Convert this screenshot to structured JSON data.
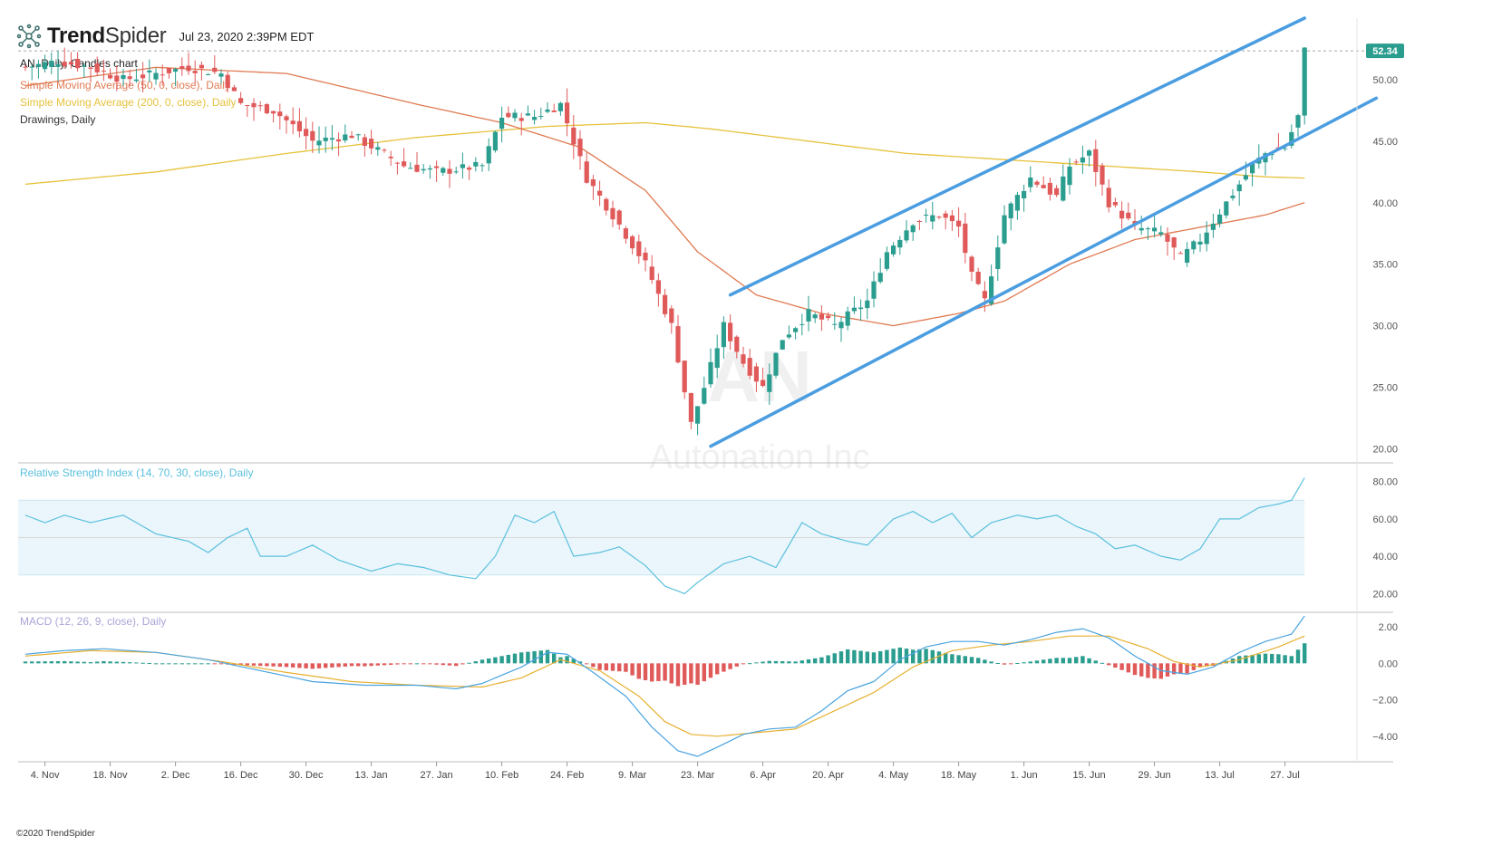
{
  "header": {
    "brand_bold": "Trend",
    "brand_thin": "Spider",
    "timestamp": "Jul 23, 2020 2:39PM EDT",
    "logo_icon": "spider-network-icon"
  },
  "price_panel": {
    "legend": [
      {
        "text": "AN, Daily, Candles chart",
        "color": "#222222"
      },
      {
        "text": "Simple Moving Average (50, 0, close), Daily",
        "color": "#e07a52"
      },
      {
        "text": "Simple Moving Average (200, 0, close), Daily",
        "color": "#e6c23c"
      },
      {
        "text": "Drawings, Daily",
        "color": "#333333"
      }
    ],
    "y_ticks": [
      "50.00",
      "45.00",
      "40.00",
      "35.00",
      "30.00",
      "25.00",
      "20.00"
    ],
    "y_values": [
      50,
      45,
      40,
      35,
      30,
      25,
      20
    ],
    "last_price": "52.34",
    "watermark_ticker": "AN",
    "watermark_name": "Autonation Inc"
  },
  "rsi_panel": {
    "legend": "Relative Strength Index (14, 70, 30, close), Daily",
    "y_ticks": [
      "80.00",
      "60.00",
      "40.00",
      "20.00"
    ],
    "y_values": [
      80,
      60,
      40,
      20
    ]
  },
  "macd_panel": {
    "legend": "MACD (12, 26, 9, close), Daily",
    "y_ticks": [
      "2.00",
      "0.00",
      "−2.00",
      "−4.00"
    ],
    "y_values": [
      2,
      0,
      -2,
      -4
    ]
  },
  "x_axis": {
    "labels": [
      "4. Nov",
      "18. Nov",
      "2. Dec",
      "16. Dec",
      "30. Dec",
      "13. Jan",
      "27. Jan",
      "10. Feb",
      "24. Feb",
      "9. Mar",
      "23. Mar",
      "6. Apr",
      "20. Apr",
      "4. May",
      "18. May",
      "1. Jun",
      "15. Jun",
      "29. Jun",
      "13. Jul",
      "27. Jul"
    ],
    "days": [
      3,
      13,
      23,
      33,
      43,
      53,
      63,
      73,
      83,
      93,
      103,
      113,
      123,
      133,
      143,
      153,
      163,
      173,
      183,
      193
    ]
  },
  "footer": {
    "copyright": "©2020 TrendSpider"
  },
  "colors": {
    "up": "#2a9d8f",
    "down": "#e05a5a",
    "channel": "#4a9de0",
    "sma50": "#e07a52",
    "sma200": "#e6c23c",
    "rsi": "#5bc0de",
    "macd": "#4aa3df",
    "signal": "#e6b030",
    "price_tag": "#2a9d8f"
  },
  "chart_data": [
    {
      "type": "candlestick",
      "ticker": "AN",
      "x_unit": "trading day index (0 = 28 Oct 2019)",
      "ylim": [
        19,
        55
      ],
      "anchors": [
        [
          0,
          51
        ],
        [
          5,
          51.5
        ],
        [
          10,
          51
        ],
        [
          15,
          50
        ],
        [
          20,
          50.5
        ],
        [
          25,
          51
        ],
        [
          30,
          50.5
        ],
        [
          33,
          48
        ],
        [
          38,
          47.5
        ],
        [
          44,
          45
        ],
        [
          50,
          45.5
        ],
        [
          58,
          43
        ],
        [
          63,
          42.5
        ],
        [
          70,
          43
        ],
        [
          73,
          47
        ],
        [
          78,
          47
        ],
        [
          82,
          48
        ],
        [
          86,
          42
        ],
        [
          90,
          39
        ],
        [
          95,
          35
        ],
        [
          99,
          30
        ],
        [
          102,
          22
        ],
        [
          104,
          25
        ],
        [
          107,
          30
        ],
        [
          110,
          27
        ],
        [
          113,
          25
        ],
        [
          116,
          29
        ],
        [
          120,
          31
        ],
        [
          124,
          30
        ],
        [
          129,
          32
        ],
        [
          132,
          36
        ],
        [
          136,
          38.5
        ],
        [
          140,
          39
        ],
        [
          143,
          38
        ],
        [
          145,
          34
        ],
        [
          147,
          32
        ],
        [
          150,
          39
        ],
        [
          154,
          42
        ],
        [
          158,
          40.5
        ],
        [
          160,
          43
        ],
        [
          163,
          44
        ],
        [
          166,
          40
        ],
        [
          170,
          38
        ],
        [
          174,
          37.5
        ],
        [
          177,
          35.5
        ],
        [
          180,
          37
        ],
        [
          184,
          40
        ],
        [
          188,
          43
        ],
        [
          190,
          44
        ],
        [
          193,
          44.5
        ],
        [
          195,
          47
        ],
        [
          196,
          52.34
        ]
      ],
      "sma50": [
        [
          0,
          49.5
        ],
        [
          20,
          51
        ],
        [
          40,
          50.5
        ],
        [
          60,
          48
        ],
        [
          73,
          46.5
        ],
        [
          85,
          44.5
        ],
        [
          95,
          41
        ],
        [
          103,
          36
        ],
        [
          112,
          32.5
        ],
        [
          122,
          31
        ],
        [
          133,
          30
        ],
        [
          143,
          31
        ],
        [
          150,
          32
        ],
        [
          160,
          35
        ],
        [
          170,
          37
        ],
        [
          180,
          38
        ],
        [
          190,
          39
        ],
        [
          196,
          40
        ]
      ],
      "sma200": [
        [
          0,
          41.5
        ],
        [
          20,
          42.5
        ],
        [
          40,
          44
        ],
        [
          60,
          45.3
        ],
        [
          80,
          46.2
        ],
        [
          95,
          46.5
        ],
        [
          105,
          46
        ],
        [
          120,
          45
        ],
        [
          135,
          44
        ],
        [
          150,
          43.5
        ],
        [
          165,
          43
        ],
        [
          180,
          42.5
        ],
        [
          190,
          42.1
        ],
        [
          196,
          42
        ]
      ],
      "channel_upper": [
        [
          108,
          32.5
        ],
        [
          196,
          55
        ]
      ],
      "channel_lower": [
        [
          105,
          20.2
        ],
        [
          207,
          48.5
        ]
      ]
    },
    {
      "type": "line",
      "name": "RSI",
      "ylim": [
        10,
        90
      ],
      "overbought": 70,
      "oversold": 30,
      "points": [
        [
          0,
          62
        ],
        [
          3,
          58
        ],
        [
          6,
          62
        ],
        [
          10,
          58
        ],
        [
          15,
          62
        ],
        [
          20,
          52
        ],
        [
          25,
          48
        ],
        [
          28,
          42
        ],
        [
          31,
          50
        ],
        [
          34,
          55
        ],
        [
          36,
          40
        ],
        [
          40,
          40
        ],
        [
          44,
          46
        ],
        [
          48,
          38
        ],
        [
          53,
          32
        ],
        [
          57,
          36
        ],
        [
          61,
          34
        ],
        [
          65,
          30
        ],
        [
          69,
          28
        ],
        [
          72,
          40
        ],
        [
          75,
          62
        ],
        [
          78,
          58
        ],
        [
          81,
          64
        ],
        [
          84,
          40
        ],
        [
          88,
          42
        ],
        [
          91,
          45
        ],
        [
          95,
          35
        ],
        [
          98,
          24
        ],
        [
          101,
          20
        ],
        [
          103,
          26
        ],
        [
          107,
          36
        ],
        [
          111,
          40
        ],
        [
          115,
          34
        ],
        [
          119,
          58
        ],
        [
          122,
          52
        ],
        [
          126,
          48
        ],
        [
          129,
          46
        ],
        [
          133,
          60
        ],
        [
          136,
          64
        ],
        [
          139,
          58
        ],
        [
          142,
          63
        ],
        [
          145,
          50
        ],
        [
          148,
          58
        ],
        [
          152,
          62
        ],
        [
          155,
          60
        ],
        [
          158,
          62
        ],
        [
          161,
          56
        ],
        [
          164,
          52
        ],
        [
          167,
          44
        ],
        [
          170,
          46
        ],
        [
          174,
          40
        ],
        [
          177,
          38
        ],
        [
          180,
          44
        ],
        [
          183,
          60
        ],
        [
          186,
          60
        ],
        [
          189,
          66
        ],
        [
          192,
          68
        ],
        [
          194,
          70
        ],
        [
          196,
          82
        ]
      ]
    },
    {
      "type": "line+histogram",
      "name": "MACD",
      "ylim": [
        -5.4,
        2.8
      ],
      "macd": [
        [
          0,
          0.5
        ],
        [
          6,
          0.7
        ],
        [
          12,
          0.8
        ],
        [
          20,
          0.6
        ],
        [
          28,
          0.2
        ],
        [
          36,
          -0.4
        ],
        [
          44,
          -1.0
        ],
        [
          52,
          -1.2
        ],
        [
          60,
          -1.2
        ],
        [
          66,
          -1.4
        ],
        [
          70,
          -1.1
        ],
        [
          76,
          -0.2
        ],
        [
          80,
          0.6
        ],
        [
          83,
          0.5
        ],
        [
          87,
          -0.5
        ],
        [
          92,
          -1.8
        ],
        [
          96,
          -3.5
        ],
        [
          100,
          -4.8
        ],
        [
          103,
          -5.1
        ],
        [
          106,
          -4.6
        ],
        [
          110,
          -3.9
        ],
        [
          114,
          -3.6
        ],
        [
          118,
          -3.5
        ],
        [
          122,
          -2.6
        ],
        [
          126,
          -1.5
        ],
        [
          130,
          -1.0
        ],
        [
          134,
          0.2
        ],
        [
          138,
          0.9
        ],
        [
          142,
          1.2
        ],
        [
          146,
          1.2
        ],
        [
          150,
          1.0
        ],
        [
          154,
          1.3
        ],
        [
          158,
          1.7
        ],
        [
          162,
          1.9
        ],
        [
          166,
          1.4
        ],
        [
          170,
          0.4
        ],
        [
          174,
          -0.4
        ],
        [
          178,
          -0.6
        ],
        [
          182,
          -0.2
        ],
        [
          186,
          0.6
        ],
        [
          190,
          1.2
        ],
        [
          194,
          1.6
        ],
        [
          196,
          2.6
        ]
      ],
      "signal": [
        [
          0,
          0.4
        ],
        [
          10,
          0.7
        ],
        [
          20,
          0.6
        ],
        [
          30,
          0.1
        ],
        [
          40,
          -0.5
        ],
        [
          50,
          -1.0
        ],
        [
          60,
          -1.2
        ],
        [
          70,
          -1.3
        ],
        [
          76,
          -0.8
        ],
        [
          82,
          0.2
        ],
        [
          88,
          -0.4
        ],
        [
          94,
          -1.8
        ],
        [
          98,
          -3.2
        ],
        [
          102,
          -3.9
        ],
        [
          106,
          -4.0
        ],
        [
          112,
          -3.8
        ],
        [
          118,
          -3.6
        ],
        [
          124,
          -2.6
        ],
        [
          130,
          -1.6
        ],
        [
          136,
          -0.2
        ],
        [
          142,
          0.7
        ],
        [
          148,
          1.0
        ],
        [
          154,
          1.2
        ],
        [
          160,
          1.5
        ],
        [
          166,
          1.5
        ],
        [
          172,
          0.8
        ],
        [
          176,
          0.1
        ],
        [
          180,
          -0.2
        ],
        [
          186,
          0.2
        ],
        [
          192,
          0.9
        ],
        [
          196,
          1.5
        ]
      ]
    }
  ]
}
